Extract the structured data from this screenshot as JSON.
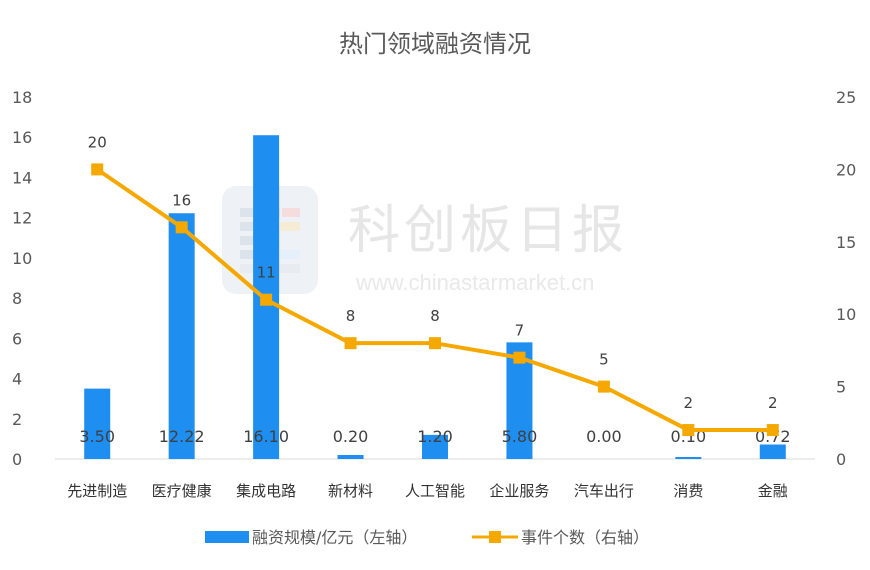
{
  "chart_data": {
    "type": "bar",
    "title": "热门领域融资情况",
    "categories": [
      "先进制造",
      "医疗健康",
      "集成电路",
      "新材料",
      "人工智能",
      "企业服务",
      "汽车出行",
      "消费",
      "金融"
    ],
    "series": [
      {
        "name": "融资规模/亿元（左轴）",
        "type": "bar",
        "axis": "left",
        "values": [
          3.5,
          12.22,
          16.1,
          0.2,
          1.2,
          5.8,
          0.0,
          0.1,
          0.72
        ],
        "labels": [
          "3.50",
          "12.22",
          "16.10",
          "0.20",
          "1.20",
          "5.80",
          "0.00",
          "0.10",
          "0.72"
        ]
      },
      {
        "name": "事件个数（右轴）",
        "type": "line",
        "axis": "right",
        "values": [
          20,
          16,
          11,
          8,
          8,
          7,
          5,
          2,
          2
        ]
      }
    ],
    "ylim_left": [
      0,
      18
    ],
    "yticks_left": [
      0,
      2,
      4,
      6,
      8,
      10,
      12,
      14,
      16,
      18
    ],
    "ylim_right": [
      0,
      25
    ],
    "yticks_right": [
      0,
      5,
      10,
      15,
      20,
      25
    ],
    "grid": false,
    "legend": "bottom",
    "colors": {
      "bar": "#1f8ef1",
      "line": "#f5a800"
    }
  },
  "watermark": {
    "name": "科创板日报",
    "url": "www.chinastarmarket.cn"
  }
}
